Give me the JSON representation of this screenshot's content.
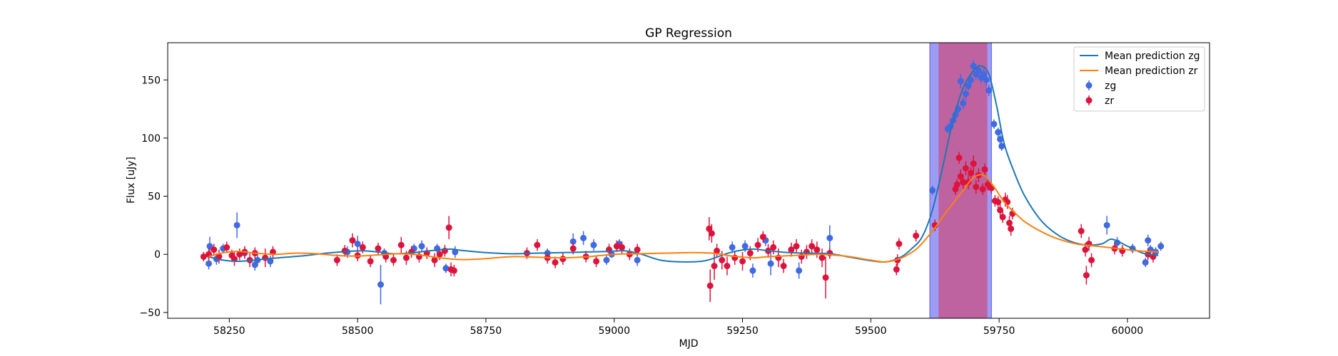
{
  "chart_data": {
    "type": "scatter",
    "title": "GP Regression",
    "xlabel": "MJD",
    "ylabel": "Flux [uJy]",
    "xlim": [
      58130,
      60160
    ],
    "ylim": [
      -55,
      182
    ],
    "xticks": [
      58250,
      58500,
      58750,
      59000,
      59250,
      59500,
      59750,
      60000
    ],
    "yticks": [
      -50,
      0,
      50,
      100,
      150
    ],
    "grid": false,
    "legend_position": "top-right",
    "legend": [
      "Mean prediction zg",
      "Mean prediction zr",
      "zg",
      "zr"
    ],
    "colors": {
      "zg_line": "#1f77b4",
      "zr_line": "#ff7f0e",
      "zg_points": "#4169e1",
      "zr_points": "#dc143c",
      "outer_band": "#7b7bf2",
      "inner_band": "#c0609a"
    },
    "bands": [
      {
        "name": "outer",
        "x": [
          59615,
          59735
        ]
      },
      {
        "name": "inner",
        "x": [
          59632,
          59727
        ]
      }
    ],
    "series": [
      {
        "name": "Mean prediction zg",
        "kind": "line",
        "x": [
          58210,
          58230,
          58260,
          58290,
          58320,
          58360,
          58400,
          58440,
          58480,
          58510,
          58540,
          58570,
          58600,
          58640,
          58680,
          58700,
          58750,
          58800,
          58850,
          58900,
          58950,
          58990,
          59020,
          59050,
          59090,
          59130,
          59170,
          59190,
          59230,
          59270,
          59300,
          59340,
          59380,
          59420,
          59460,
          59500,
          59530,
          59560,
          59580,
          59600,
          59620,
          59640,
          59660,
          59680,
          59700,
          59715,
          59730,
          59745,
          59760,
          59780,
          59800,
          59830,
          59860,
          59890,
          59920,
          59950,
          59970,
          60000,
          60030,
          60060
        ],
        "y": [
          -2.0,
          -4.5,
          -6.0,
          -5.5,
          -4.0,
          -2.5,
          -1.0,
          1.0,
          2.5,
          3.0,
          2.0,
          0.5,
          1.0,
          3.0,
          4.5,
          3.5,
          1.5,
          0.5,
          1.0,
          1.5,
          2.0,
          2.5,
          3.0,
          0.5,
          -5.0,
          -6.5,
          -6.0,
          -4.0,
          2.0,
          4.5,
          3.0,
          1.5,
          1.0,
          0.5,
          -2.5,
          -5.5,
          -6.5,
          -2.0,
          5.0,
          15.0,
          38.0,
          75.0,
          115.0,
          143.0,
          158.0,
          162.0,
          155.0,
          128.0,
          95.0,
          70.0,
          50.0,
          30.0,
          18.0,
          11.0,
          8.0,
          9.0,
          13.0,
          7.0,
          1.0,
          -1.0
        ]
      },
      {
        "name": "Mean prediction zr",
        "kind": "line",
        "x": [
          58210,
          58240,
          58270,
          58300,
          58340,
          58380,
          58420,
          58460,
          58500,
          58540,
          58580,
          58620,
          58660,
          58700,
          58740,
          58800,
          58850,
          58900,
          58950,
          59000,
          59050,
          59100,
          59150,
          59190,
          59230,
          59270,
          59300,
          59350,
          59400,
          59450,
          59500,
          59530,
          59560,
          59590,
          59620,
          59650,
          59680,
          59700,
          59720,
          59740,
          59760,
          59780,
          59800,
          59830,
          59860,
          59900,
          59940,
          59980,
          60020,
          60060
        ],
        "y": [
          -2.0,
          1.5,
          2.5,
          1.0,
          0.0,
          1.0,
          0.5,
          -1.0,
          -1.5,
          -0.5,
          0.5,
          -0.5,
          -3.0,
          -4.5,
          -4.0,
          -2.0,
          -2.5,
          -3.0,
          -2.0,
          0.0,
          0.5,
          1.0,
          1.5,
          1.0,
          -1.5,
          -3.0,
          -2.0,
          -1.0,
          0.0,
          -1.5,
          -5.0,
          -6.5,
          -3.0,
          5.0,
          20.0,
          38.0,
          55.0,
          66.0,
          68.0,
          58.0,
          45.0,
          36.0,
          28.0,
          20.0,
          14.0,
          9.0,
          7.0,
          5.0,
          3.0,
          2.0
        ]
      },
      {
        "name": "zg",
        "kind": "errorbar",
        "points": [
          [
            58210,
            -8,
            5
          ],
          [
            58212,
            7,
            8
          ],
          [
            58225,
            -4,
            5
          ],
          [
            58238,
            5,
            4
          ],
          [
            58265,
            25,
            11
          ],
          [
            58280,
            1,
            5
          ],
          [
            58300,
            -9,
            5
          ],
          [
            58305,
            -5,
            5
          ],
          [
            58330,
            -6,
            5
          ],
          [
            58480,
            2,
            5
          ],
          [
            58500,
            9,
            7
          ],
          [
            58545,
            -26,
            17
          ],
          [
            58552,
            1,
            4
          ],
          [
            58610,
            5,
            4
          ],
          [
            58625,
            7,
            5
          ],
          [
            58655,
            5,
            4
          ],
          [
            58672,
            -12,
            4
          ],
          [
            58690,
            2,
            5
          ],
          [
            58870,
            1,
            4
          ],
          [
            58920,
            11,
            7
          ],
          [
            58940,
            14,
            6
          ],
          [
            58960,
            8,
            5
          ],
          [
            58985,
            -5,
            4
          ],
          [
            58995,
            0,
            3
          ],
          [
            59010,
            9,
            4
          ],
          [
            59045,
            -5,
            5
          ],
          [
            59230,
            6,
            5
          ],
          [
            59255,
            7,
            5
          ],
          [
            59270,
            -14,
            6
          ],
          [
            59295,
            12,
            5
          ],
          [
            59305,
            -8,
            10
          ],
          [
            59360,
            -14,
            7
          ],
          [
            59420,
            14,
            11
          ],
          [
            59620,
            55,
            4
          ],
          [
            59650,
            108,
            4
          ],
          [
            59655,
            110,
            5
          ],
          [
            59660,
            115,
            5
          ],
          [
            59665,
            120,
            5
          ],
          [
            59670,
            125,
            4
          ],
          [
            59675,
            149,
            6
          ],
          [
            59680,
            130,
            5
          ],
          [
            59685,
            138,
            5
          ],
          [
            59690,
            145,
            4
          ],
          [
            59695,
            150,
            5
          ],
          [
            59700,
            162,
            5
          ],
          [
            59705,
            155,
            5
          ],
          [
            59710,
            158,
            5
          ],
          [
            59715,
            152,
            5
          ],
          [
            59720,
            155,
            5
          ],
          [
            59725,
            150,
            5
          ],
          [
            59730,
            141,
            5
          ],
          [
            59740,
            112,
            4
          ],
          [
            59748,
            105,
            4
          ],
          [
            59752,
            99,
            4
          ],
          [
            59755,
            93,
            4
          ],
          [
            59960,
            25,
            8
          ],
          [
            59980,
            10,
            5
          ],
          [
            60010,
            5,
            4
          ],
          [
            60035,
            -7,
            4
          ],
          [
            60040,
            12,
            5
          ],
          [
            60045,
            4,
            4
          ],
          [
            60055,
            2,
            4
          ],
          [
            60065,
            7,
            4
          ]
        ]
      },
      {
        "name": "zr",
        "kind": "errorbar",
        "points": [
          [
            58200,
            -2,
            4
          ],
          [
            58210,
            0,
            5
          ],
          [
            58220,
            4,
            5
          ],
          [
            58230,
            -2,
            6
          ],
          [
            58245,
            6,
            5
          ],
          [
            58255,
            -1,
            5
          ],
          [
            58260,
            -4,
            6
          ],
          [
            58270,
            0,
            5
          ],
          [
            58280,
            2,
            5
          ],
          [
            58290,
            -5,
            6
          ],
          [
            58300,
            1,
            5
          ],
          [
            58320,
            -3,
            8
          ],
          [
            58335,
            2,
            5
          ],
          [
            58460,
            -5,
            5
          ],
          [
            58475,
            3,
            5
          ],
          [
            58490,
            12,
            6
          ],
          [
            58500,
            -1,
            5
          ],
          [
            58510,
            6,
            5
          ],
          [
            58525,
            -6,
            5
          ],
          [
            58540,
            5,
            5
          ],
          [
            58555,
            -2,
            5
          ],
          [
            58570,
            -5,
            5
          ],
          [
            58585,
            8,
            7
          ],
          [
            58595,
            -3,
            6
          ],
          [
            58605,
            2,
            5
          ],
          [
            58620,
            -2,
            5
          ],
          [
            58635,
            1,
            5
          ],
          [
            58650,
            -5,
            6
          ],
          [
            58660,
            0,
            5
          ],
          [
            58670,
            3,
            5
          ],
          [
            58678,
            23,
            10
          ],
          [
            58682,
            -13,
            6
          ],
          [
            58688,
            -14,
            5
          ],
          [
            58830,
            1,
            5
          ],
          [
            58850,
            8,
            5
          ],
          [
            58870,
            -3,
            5
          ],
          [
            58885,
            -7,
            5
          ],
          [
            58900,
            -4,
            5
          ],
          [
            58920,
            5,
            5
          ],
          [
            58945,
            -2,
            5
          ],
          [
            58965,
            -6,
            5
          ],
          [
            58990,
            4,
            5
          ],
          [
            59005,
            7,
            5
          ],
          [
            59015,
            6,
            5
          ],
          [
            59030,
            0,
            5
          ],
          [
            59045,
            4,
            5
          ],
          [
            59185,
            22,
            10
          ],
          [
            59187,
            -27,
            14
          ],
          [
            59190,
            18,
            8
          ],
          [
            59195,
            -10,
            12
          ],
          [
            59200,
            3,
            6
          ],
          [
            59210,
            -5,
            8
          ],
          [
            59220,
            -10,
            8
          ],
          [
            59235,
            -3,
            6
          ],
          [
            59250,
            -6,
            8
          ],
          [
            59265,
            1,
            6
          ],
          [
            59280,
            8,
            6
          ],
          [
            59290,
            15,
            5
          ],
          [
            59300,
            3,
            6
          ],
          [
            59310,
            6,
            6
          ],
          [
            59320,
            -3,
            8
          ],
          [
            59330,
            -10,
            6
          ],
          [
            59345,
            4,
            6
          ],
          [
            59355,
            7,
            6
          ],
          [
            59365,
            -2,
            6
          ],
          [
            59375,
            2,
            6
          ],
          [
            59385,
            7,
            6
          ],
          [
            59395,
            4,
            7
          ],
          [
            59405,
            -3,
            8
          ],
          [
            59412,
            -20,
            18
          ],
          [
            59420,
            1,
            5
          ],
          [
            59550,
            -13,
            5
          ],
          [
            59552,
            -5,
            5
          ],
          [
            59555,
            9,
            5
          ],
          [
            59588,
            16,
            5
          ],
          [
            59625,
            25,
            5
          ],
          [
            59665,
            56,
            5
          ],
          [
            59668,
            60,
            5
          ],
          [
            59672,
            83,
            5
          ],
          [
            59675,
            67,
            6
          ],
          [
            59680,
            62,
            6
          ],
          [
            59685,
            74,
            6
          ],
          [
            59690,
            62,
            6
          ],
          [
            59695,
            70,
            5
          ],
          [
            59700,
            78,
            7
          ],
          [
            59705,
            58,
            6
          ],
          [
            59710,
            68,
            6
          ],
          [
            59718,
            56,
            5
          ],
          [
            59722,
            73,
            5
          ],
          [
            59728,
            60,
            5
          ],
          [
            59735,
            57,
            5
          ],
          [
            59742,
            46,
            5
          ],
          [
            59748,
            45,
            5
          ],
          [
            59752,
            38,
            5
          ],
          [
            59757,
            32,
            5
          ],
          [
            59762,
            47,
            6
          ],
          [
            59766,
            45,
            6
          ],
          [
            59770,
            27,
            6
          ],
          [
            59773,
            22,
            6
          ],
          [
            59776,
            35,
            5
          ],
          [
            59910,
            20,
            6
          ],
          [
            59918,
            4,
            6
          ],
          [
            59920,
            -18,
            8
          ],
          [
            59925,
            9,
            6
          ],
          [
            59930,
            -5,
            6
          ],
          [
            59975,
            5,
            5
          ],
          [
            59990,
            3,
            5
          ],
          [
            60040,
            0,
            5
          ],
          [
            60050,
            -2,
            5
          ]
        ]
      }
    ]
  }
}
